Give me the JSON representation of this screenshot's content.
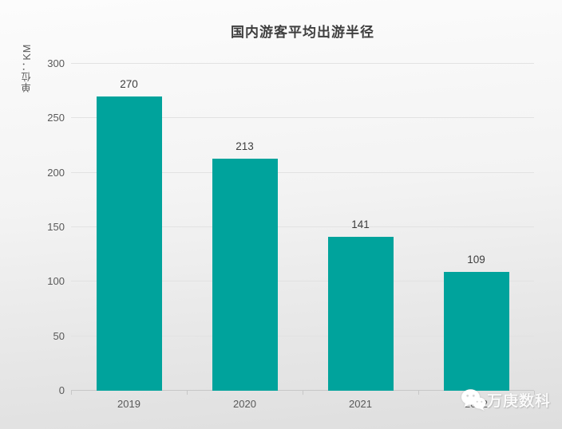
{
  "chart_data": {
    "type": "bar",
    "title": "国内游客平均出游半径",
    "ylabel": "单位：KM",
    "xlabel": "",
    "categories": [
      "2019",
      "2020",
      "2021",
      "2022"
    ],
    "values": [
      270,
      213,
      141,
      109
    ],
    "ylim": [
      0,
      300
    ],
    "yticks": [
      0,
      50,
      100,
      150,
      200,
      250,
      300
    ],
    "grid": true,
    "legend": "none",
    "bar_color": "#00a39c"
  },
  "watermark": {
    "icon": "wechat-icon",
    "text": "万庚数科"
  },
  "colors": {
    "bar": "#00a39c",
    "title_text": "#3f3f3f",
    "axis_text": "#595959",
    "value_label_text": "#3d3d3d",
    "gridline": "#e2e2e2",
    "axis_line": "#c7c7c7",
    "background_top": "#fcfcfc",
    "background_bottom": "#dedede",
    "watermark_text": "#ffffff"
  }
}
